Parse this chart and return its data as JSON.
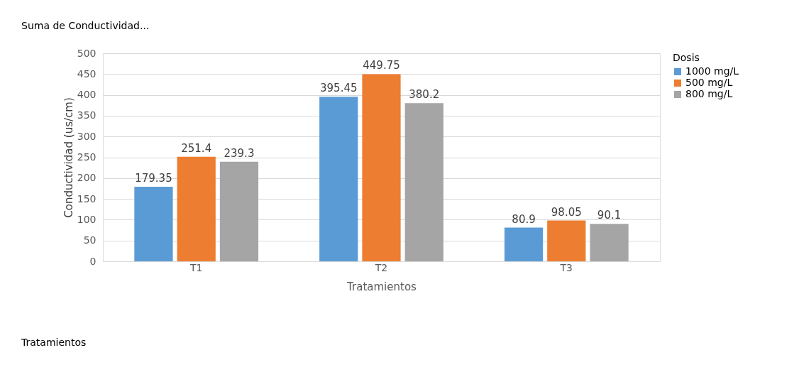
{
  "chart_data": {
    "type": "bar",
    "xlabel": "Tratamientos",
    "ylabel": "Conductividad (us/cm)",
    "legend_title": "Dosis",
    "categories": [
      "T1",
      "T2",
      "T3"
    ],
    "series": [
      {
        "name": "1000 mg/L",
        "color": "#5b9bd5",
        "values": [
          179.35,
          395.45,
          80.9
        ]
      },
      {
        "name": "500 mg/L",
        "color": "#ed7d31",
        "values": [
          251.4,
          449.75,
          98.05
        ]
      },
      {
        "name": "800 mg/L",
        "color": "#a5a5a5",
        "values": [
          239.3,
          380.2,
          90.1
        ]
      }
    ],
    "ylim": [
      0,
      500
    ],
    "yticks": [
      0,
      50,
      100,
      150,
      200,
      250,
      300,
      350,
      400,
      450,
      500
    ],
    "grid": "y",
    "legend": "right",
    "data_labels": true,
    "annotations": [
      "Suma de Conductividad...",
      "Tratamientos"
    ]
  }
}
